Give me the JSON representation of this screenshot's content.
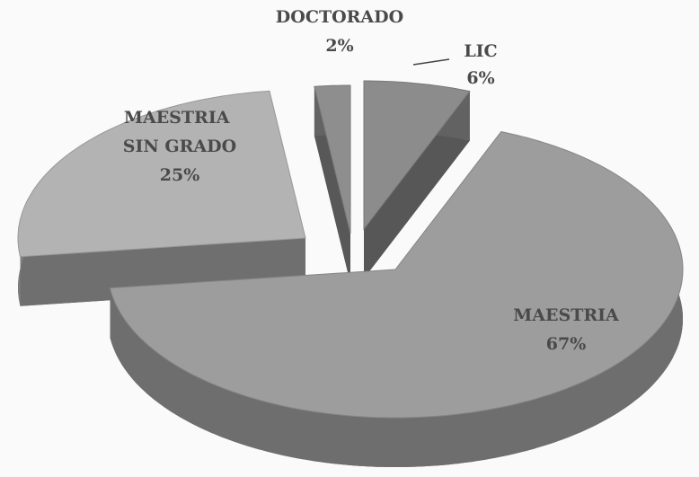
{
  "chart_data": {
    "type": "pie",
    "categories": [
      "LIC",
      "MAESTRIA",
      "MAESTRIA SIN GRADO",
      "DOCTORADO"
    ],
    "values": [
      6,
      67,
      25,
      2
    ],
    "value_labels": [
      "6%",
      "67%",
      "25%",
      "2%"
    ],
    "colors": [
      "#8c8c8c",
      "#9d9d9d",
      "#b3b3b3",
      "#8e8e8e"
    ]
  }
}
